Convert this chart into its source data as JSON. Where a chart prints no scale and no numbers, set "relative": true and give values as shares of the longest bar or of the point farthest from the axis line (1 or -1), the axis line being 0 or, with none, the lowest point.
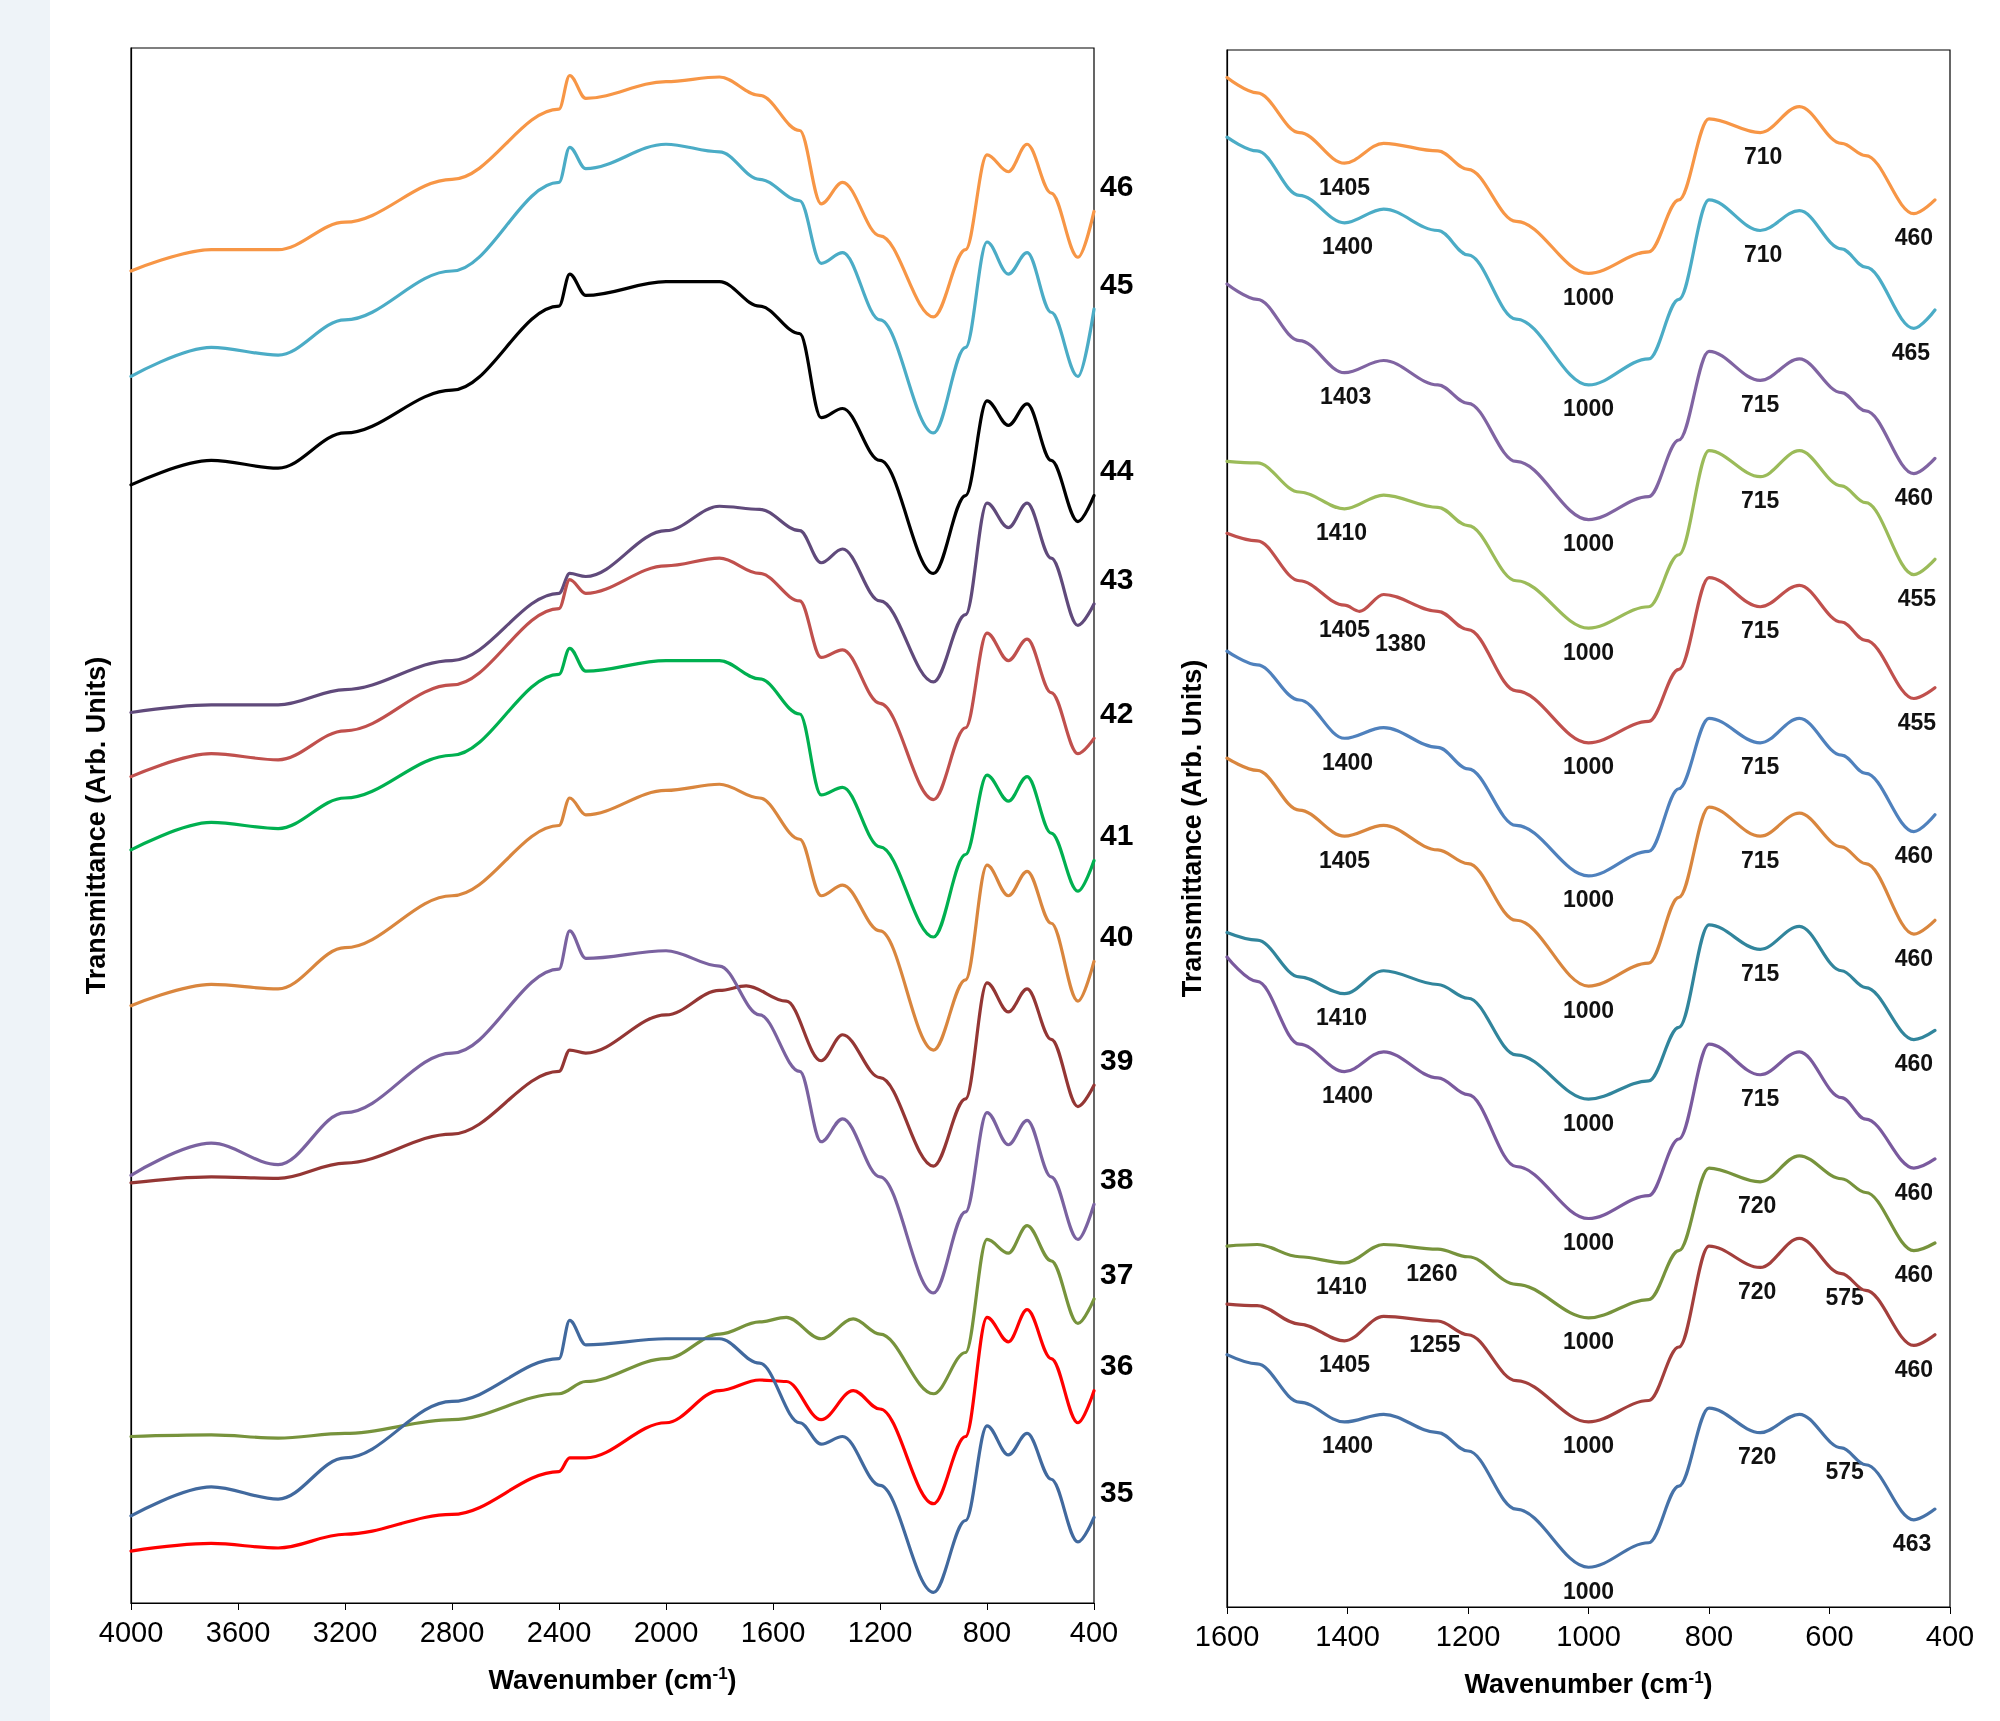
{
  "chart_data": [
    {
      "type": "line",
      "relative": true,
      "marker": "none",
      "xlabel": "Wavenumber (cm$^{-1}$)",
      "ylabel": "Transmittance (Arb. Units)",
      "xlim": [
        4000,
        400
      ],
      "xticks": [
        4000,
        3600,
        3200,
        2800,
        2400,
        2000,
        1600,
        1200,
        800,
        400
      ],
      "x": [
        4000,
        3700,
        3450,
        3200,
        2800,
        2400,
        2360,
        2300,
        2000,
        1800,
        1650,
        1500,
        1420,
        1340,
        1200,
        1000,
        880,
        800,
        720,
        650,
        560,
        460,
        400
      ],
      "series": [
        {
          "name": "46",
          "color": "#f79646",
          "values": [
            0.872,
            0.886,
            0.886,
            0.904,
            0.932,
            0.978,
            1.0,
            0.985,
            0.996,
            0.999,
            0.987,
            0.964,
            0.916,
            0.93,
            0.895,
            0.842,
            0.886,
            0.948,
            0.937,
            0.955,
            0.923,
            0.881,
            0.911
          ]
        },
        {
          "name": "45",
          "color": "#4bacc6",
          "values": [
            0.803,
            0.822,
            0.817,
            0.84,
            0.872,
            0.93,
            0.953,
            0.939,
            0.955,
            0.95,
            0.932,
            0.918,
            0.877,
            0.884,
            0.84,
            0.766,
            0.822,
            0.891,
            0.87,
            0.884,
            0.845,
            0.803,
            0.847
          ]
        },
        {
          "name": "44",
          "color": "#000000",
          "values": [
            0.732,
            0.748,
            0.743,
            0.766,
            0.794,
            0.849,
            0.87,
            0.856,
            0.865,
            0.865,
            0.849,
            0.831,
            0.776,
            0.782,
            0.748,
            0.674,
            0.725,
            0.787,
            0.771,
            0.785,
            0.748,
            0.708,
            0.725
          ]
        },
        {
          "name": "43",
          "color": "#604a7b",
          "values": [
            0.583,
            0.588,
            0.588,
            0.598,
            0.617,
            0.661,
            0.674,
            0.672,
            0.702,
            0.718,
            0.716,
            0.702,
            0.681,
            0.69,
            0.656,
            0.603,
            0.647,
            0.72,
            0.704,
            0.72,
            0.684,
            0.64,
            0.654
          ]
        },
        {
          "name": "42",
          "color": "#c0504d",
          "values": [
            0.541,
            0.556,
            0.552,
            0.571,
            0.601,
            0.651,
            0.67,
            0.661,
            0.679,
            0.684,
            0.674,
            0.656,
            0.619,
            0.624,
            0.589,
            0.526,
            0.573,
            0.635,
            0.617,
            0.631,
            0.596,
            0.556,
            0.566
          ]
        },
        {
          "name": "41",
          "color": "#00b050",
          "values": [
            0.493,
            0.511,
            0.507,
            0.527,
            0.555,
            0.608,
            0.625,
            0.61,
            0.617,
            0.617,
            0.605,
            0.582,
            0.529,
            0.534,
            0.495,
            0.436,
            0.49,
            0.542,
            0.525,
            0.541,
            0.504,
            0.466,
            0.486
          ]
        },
        {
          "name": "40",
          "color": "#d9863e",
          "values": [
            0.391,
            0.405,
            0.402,
            0.429,
            0.463,
            0.509,
            0.527,
            0.516,
            0.532,
            0.536,
            0.527,
            0.5,
            0.463,
            0.47,
            0.44,
            0.362,
            0.408,
            0.483,
            0.463,
            0.479,
            0.445,
            0.394,
            0.42
          ]
        },
        {
          "name": "39",
          "color": "#943634",
          "x": [
            4000,
            3700,
            3450,
            3200,
            2800,
            2400,
            2360,
            2300,
            2000,
            1800,
            1700,
            1550,
            1420,
            1340,
            1200,
            1000,
            880,
            800,
            720,
            650,
            560,
            460,
            400
          ],
          "values": [
            0.275,
            0.279,
            0.278,
            0.288,
            0.307,
            0.348,
            0.362,
            0.36,
            0.385,
            0.401,
            0.404,
            0.394,
            0.355,
            0.372,
            0.344,
            0.286,
            0.33,
            0.406,
            0.387,
            0.402,
            0.369,
            0.325,
            0.339
          ]
        },
        {
          "name": "38",
          "color": "#7a62a0",
          "values": [
            0.28,
            0.301,
            0.287,
            0.321,
            0.36,
            0.415,
            0.44,
            0.422,
            0.427,
            0.417,
            0.385,
            0.348,
            0.302,
            0.317,
            0.279,
            0.203,
            0.256,
            0.321,
            0.3,
            0.316,
            0.279,
            0.238,
            0.261
          ]
        },
        {
          "name": "37",
          "color": "#77933c",
          "x": [
            4000,
            3700,
            3450,
            3200,
            2800,
            2400,
            2300,
            2000,
            1800,
            1650,
            1550,
            1420,
            1300,
            1200,
            1000,
            880,
            800,
            720,
            650,
            560,
            460,
            400
          ],
          "values": [
            0.109,
            0.11,
            0.108,
            0.111,
            0.12,
            0.137,
            0.145,
            0.16,
            0.176,
            0.184,
            0.187,
            0.173,
            0.186,
            0.176,
            0.137,
            0.164,
            0.238,
            0.229,
            0.247,
            0.224,
            0.183,
            0.199
          ]
        },
        {
          "name": "36",
          "color": "#ff0000",
          "x": [
            4000,
            3700,
            3450,
            3200,
            2800,
            2400,
            2360,
            2300,
            2000,
            1800,
            1650,
            1550,
            1420,
            1300,
            1200,
            1000,
            880,
            800,
            720,
            650,
            560,
            460,
            400
          ],
          "values": [
            0.034,
            0.039,
            0.036,
            0.045,
            0.058,
            0.086,
            0.095,
            0.095,
            0.118,
            0.139,
            0.146,
            0.145,
            0.12,
            0.139,
            0.127,
            0.065,
            0.109,
            0.187,
            0.171,
            0.192,
            0.16,
            0.118,
            0.139
          ]
        },
        {
          "name": "35",
          "color": "#41699e",
          "values": [
            0.057,
            0.076,
            0.068,
            0.095,
            0.132,
            0.16,
            0.185,
            0.169,
            0.173,
            0.173,
            0.157,
            0.118,
            0.104,
            0.109,
            0.077,
            0.007,
            0.054,
            0.116,
            0.097,
            0.111,
            0.081,
            0.04,
            0.056
          ]
        }
      ]
    },
    {
      "type": "line",
      "relative": true,
      "marker": "none",
      "xlabel": "Wavenumber (cm$^{-1}$)",
      "ylabel": "Transmittance (Arb. Units)",
      "xlim": [
        1600,
        400
      ],
      "xticks": [
        1600,
        1400,
        1200,
        1000,
        800,
        600,
        400
      ],
      "x": [
        1600,
        1550,
        1480,
        1405,
        1340,
        1250,
        1200,
        1120,
        1000,
        900,
        850,
        800,
        715,
        650,
        580,
        540,
        460,
        425
      ],
      "series": [
        {
          "color": "#f79646",
          "values": [
            1.0,
            0.99,
            0.964,
            0.944,
            0.957,
            0.952,
            0.94,
            0.906,
            0.872,
            0.886,
            0.92,
            0.973,
            0.964,
            0.981,
            0.957,
            0.949,
            0.911,
            0.92
          ]
        },
        {
          "color": "#4bacc6",
          "values": [
            0.961,
            0.952,
            0.923,
            0.905,
            0.914,
            0.9,
            0.884,
            0.842,
            0.799,
            0.816,
            0.855,
            0.92,
            0.9,
            0.913,
            0.888,
            0.876,
            0.836,
            0.848
          ]
        },
        {
          "color": "#8064a2",
          "values": [
            0.865,
            0.855,
            0.828,
            0.807,
            0.815,
            0.799,
            0.787,
            0.749,
            0.711,
            0.726,
            0.763,
            0.821,
            0.802,
            0.816,
            0.794,
            0.782,
            0.741,
            0.751
          ]
        },
        {
          "color": "#9bbb59",
          "values": [
            0.749,
            0.748,
            0.729,
            0.718,
            0.727,
            0.719,
            0.707,
            0.671,
            0.64,
            0.654,
            0.688,
            0.756,
            0.739,
            0.756,
            0.733,
            0.722,
            0.675,
            0.685
          ]
        },
        {
          "color": "#c0504d",
          "x": [
            1600,
            1550,
            1480,
            1405,
            1380,
            1340,
            1250,
            1200,
            1120,
            1000,
            900,
            850,
            800,
            715,
            650,
            580,
            540,
            460,
            425
          ],
          "values": [
            0.702,
            0.697,
            0.671,
            0.655,
            0.651,
            0.662,
            0.651,
            0.639,
            0.599,
            0.565,
            0.579,
            0.613,
            0.673,
            0.654,
            0.668,
            0.644,
            0.632,
            0.594,
            0.601
          ]
        },
        {
          "color": "#4f81bd",
          "values": [
            0.625,
            0.616,
            0.593,
            0.568,
            0.575,
            0.562,
            0.548,
            0.511,
            0.478,
            0.494,
            0.535,
            0.581,
            0.565,
            0.581,
            0.557,
            0.545,
            0.507,
            0.518
          ]
        },
        {
          "color": "#d9863e",
          "values": [
            0.555,
            0.547,
            0.521,
            0.504,
            0.511,
            0.495,
            0.486,
            0.449,
            0.406,
            0.421,
            0.464,
            0.523,
            0.504,
            0.519,
            0.497,
            0.486,
            0.44,
            0.449
          ]
        },
        {
          "color": "#31859c",
          "values": [
            0.441,
            0.436,
            0.412,
            0.401,
            0.416,
            0.407,
            0.398,
            0.361,
            0.332,
            0.344,
            0.379,
            0.446,
            0.43,
            0.445,
            0.416,
            0.405,
            0.371,
            0.377
          ]
        },
        {
          "color": "#7a5a9e",
          "values": [
            0.425,
            0.409,
            0.368,
            0.35,
            0.363,
            0.346,
            0.335,
            0.288,
            0.254,
            0.269,
            0.306,
            0.368,
            0.348,
            0.363,
            0.333,
            0.319,
            0.287,
            0.293
          ]
        },
        {
          "color": "#77933c",
          "values": [
            0.236,
            0.237,
            0.229,
            0.225,
            0.237,
            0.234,
            0.229,
            0.211,
            0.189,
            0.201,
            0.233,
            0.287,
            0.278,
            0.295,
            0.28,
            0.271,
            0.233,
            0.238
          ]
        },
        {
          "color": "#a33f3c",
          "values": [
            0.198,
            0.197,
            0.185,
            0.174,
            0.19,
            0.187,
            0.178,
            0.148,
            0.121,
            0.135,
            0.17,
            0.236,
            0.222,
            0.241,
            0.218,
            0.207,
            0.171,
            0.178
          ]
        },
        {
          "color": "#4672a8",
          "values": [
            0.165,
            0.159,
            0.134,
            0.121,
            0.126,
            0.114,
            0.102,
            0.064,
            0.026,
            0.042,
            0.079,
            0.13,
            0.114,
            0.126,
            0.104,
            0.093,
            0.057,
            0.064
          ]
        }
      ],
      "annotations": [
        {
          "text": "1405",
          "x": 1405,
          "y": 0.944
        },
        {
          "text": "710",
          "x": 710,
          "y": 0.964
        },
        {
          "text": "1000",
          "x": 1000,
          "y": 0.872
        },
        {
          "text": "460",
          "x": 460,
          "y": 0.911
        },
        {
          "text": "1400",
          "x": 1400,
          "y": 0.905
        },
        {
          "text": "710",
          "x": 710,
          "y": 0.9
        },
        {
          "text": "1000",
          "x": 1000,
          "y": 0.799
        },
        {
          "text": "465",
          "x": 465,
          "y": 0.836
        },
        {
          "text": "1403",
          "x": 1403,
          "y": 0.807
        },
        {
          "text": "1000",
          "x": 1000,
          "y": 0.711
        },
        {
          "text": "715",
          "x": 715,
          "y": 0.802
        },
        {
          "text": "460",
          "x": 460,
          "y": 0.741
        },
        {
          "text": "1410",
          "x": 1410,
          "y": 0.718
        },
        {
          "text": "1000",
          "x": 1000,
          "y": 0.64
        },
        {
          "text": "715",
          "x": 715,
          "y": 0.739
        },
        {
          "text": "455",
          "x": 455,
          "y": 0.675
        },
        {
          "text": "1405",
          "x": 1405,
          "y": 0.655
        },
        {
          "text": "1380",
          "x": 1380,
          "y": 0.651
        },
        {
          "text": "1000",
          "x": 1000,
          "y": 0.565
        },
        {
          "text": "715",
          "x": 715,
          "y": 0.654
        },
        {
          "text": "455",
          "x": 455,
          "y": 0.594
        },
        {
          "text": "1400",
          "x": 1400,
          "y": 0.568
        },
        {
          "text": "1000",
          "x": 1000,
          "y": 0.478
        },
        {
          "text": "715",
          "x": 715,
          "y": 0.565
        },
        {
          "text": "460",
          "x": 460,
          "y": 0.507
        },
        {
          "text": "1405",
          "x": 1405,
          "y": 0.504
        },
        {
          "text": "1000",
          "x": 1000,
          "y": 0.406
        },
        {
          "text": "715",
          "x": 715,
          "y": 0.504
        },
        {
          "text": "460",
          "x": 460,
          "y": 0.44
        },
        {
          "text": "1410",
          "x": 1410,
          "y": 0.401
        },
        {
          "text": "1000",
          "x": 1000,
          "y": 0.332
        },
        {
          "text": "715",
          "x": 715,
          "y": 0.43
        },
        {
          "text": "460",
          "x": 460,
          "y": 0.371
        },
        {
          "text": "1400",
          "x": 1400,
          "y": 0.35
        },
        {
          "text": "1000",
          "x": 1000,
          "y": 0.254
        },
        {
          "text": "715",
          "x": 715,
          "y": 0.348
        },
        {
          "text": "460",
          "x": 460,
          "y": 0.287
        },
        {
          "text": "1410",
          "x": 1410,
          "y": 0.225
        },
        {
          "text": "1260",
          "x": 1260,
          "y": 0.234
        },
        {
          "text": "1000",
          "x": 1000,
          "y": 0.189
        },
        {
          "text": "720",
          "x": 720,
          "y": 0.278
        },
        {
          "text": "460",
          "x": 460,
          "y": 0.233
        },
        {
          "text": "1405",
          "x": 1405,
          "y": 0.174
        },
        {
          "text": "1255",
          "x": 1255,
          "y": 0.187
        },
        {
          "text": "1000",
          "x": 1000,
          "y": 0.121
        },
        {
          "text": "720",
          "x": 720,
          "y": 0.222
        },
        {
          "text": "575",
          "x": 575,
          "y": 0.218
        },
        {
          "text": "460",
          "x": 460,
          "y": 0.171
        },
        {
          "text": "1400",
          "x": 1400,
          "y": 0.121
        },
        {
          "text": "1000",
          "x": 1000,
          "y": 0.026
        },
        {
          "text": "720",
          "x": 720,
          "y": 0.114
        },
        {
          "text": "575",
          "x": 575,
          "y": 0.104
        },
        {
          "text": "463",
          "x": 463,
          "y": 0.057
        }
      ]
    }
  ]
}
